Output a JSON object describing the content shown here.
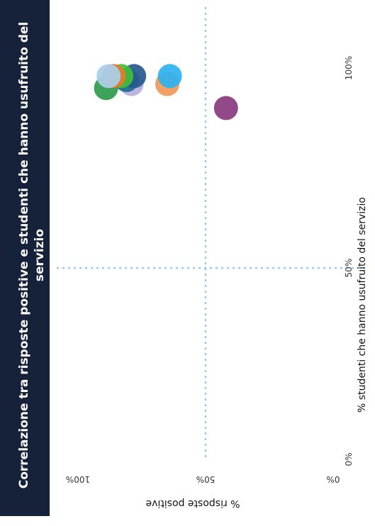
{
  "chart_data": {
    "type": "scatter",
    "title": "Correlazione tra risposte positive e studenti che hanno usufruito del servizio",
    "title_lines": [
      "Correlazione tra risposte positive e studenti che hanno usufruito del",
      "servizio"
    ],
    "xlabel": "% studenti che hanno usufruito del servizio",
    "ylabel": "% risposte positive",
    "xlim": [
      0,
      100
    ],
    "ylim": [
      0,
      100
    ],
    "x_ticks": [
      "0%",
      "50%",
      "100%"
    ],
    "y_ticks": [
      "0%",
      "50%",
      "100%"
    ],
    "grid": "dotted lines at 50%",
    "orientation": "rotated 90 degrees clockwise",
    "points": [
      {
        "x": 90,
        "y": 42,
        "color": "#8a3a7e"
      },
      {
        "x": 95,
        "y": 89,
        "color": "#2e9a4c"
      },
      {
        "x": 96,
        "y": 65,
        "color": "#f0985a"
      },
      {
        "x": 98,
        "y": 64,
        "color": "#2cb2f0"
      },
      {
        "x": 96,
        "y": 79,
        "color": "#b9aee0"
      },
      {
        "x": 97,
        "y": 81,
        "color": "#1a6f8c"
      },
      {
        "x": 98,
        "y": 78,
        "color": "#265a8c"
      },
      {
        "x": 98,
        "y": 83,
        "color": "#3fbf3a"
      },
      {
        "x": 98,
        "y": 86,
        "color": "#e87a2a"
      },
      {
        "x": 98,
        "y": 88,
        "color": "#a8cfee"
      }
    ]
  }
}
